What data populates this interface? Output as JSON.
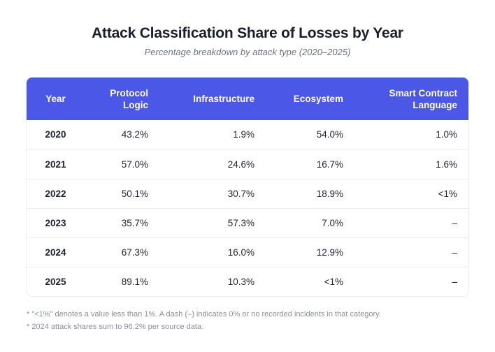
{
  "title": "Attack Classification Share of Losses by Year",
  "subtitle": "Percentage breakdown by attack type (2020–2025)",
  "table": {
    "headers": [
      "Year",
      "Protocol Logic",
      "Infrastructure",
      "Ecosystem",
      "Smart Contract Language"
    ],
    "rows": [
      [
        "2020",
        "43.2%",
        "1.9%",
        "54.0%",
        "1.0%"
      ],
      [
        "2021",
        "57.0%",
        "24.6%",
        "16.7%",
        "1.6%"
      ],
      [
        "2022",
        "50.1%",
        "30.7%",
        "18.9%",
        "<1%"
      ],
      [
        "2023",
        "35.7%",
        "57.3%",
        "7.0%",
        "–"
      ],
      [
        "2024",
        "67.3%",
        "16.0%",
        "12.9%",
        "–"
      ],
      [
        "2025",
        "89.1%",
        "10.3%",
        "<1%",
        "–"
      ]
    ]
  },
  "notes": [
    "* \"<1%\" denotes a value less than 1%. A dash (–) indicates 0% or no recorded incidents in that category.",
    "* 2024 attack shares sum to 96.2% per source data."
  ],
  "colors": {
    "header_bg": "#4b57e6",
    "header_text": "#ffffff"
  }
}
